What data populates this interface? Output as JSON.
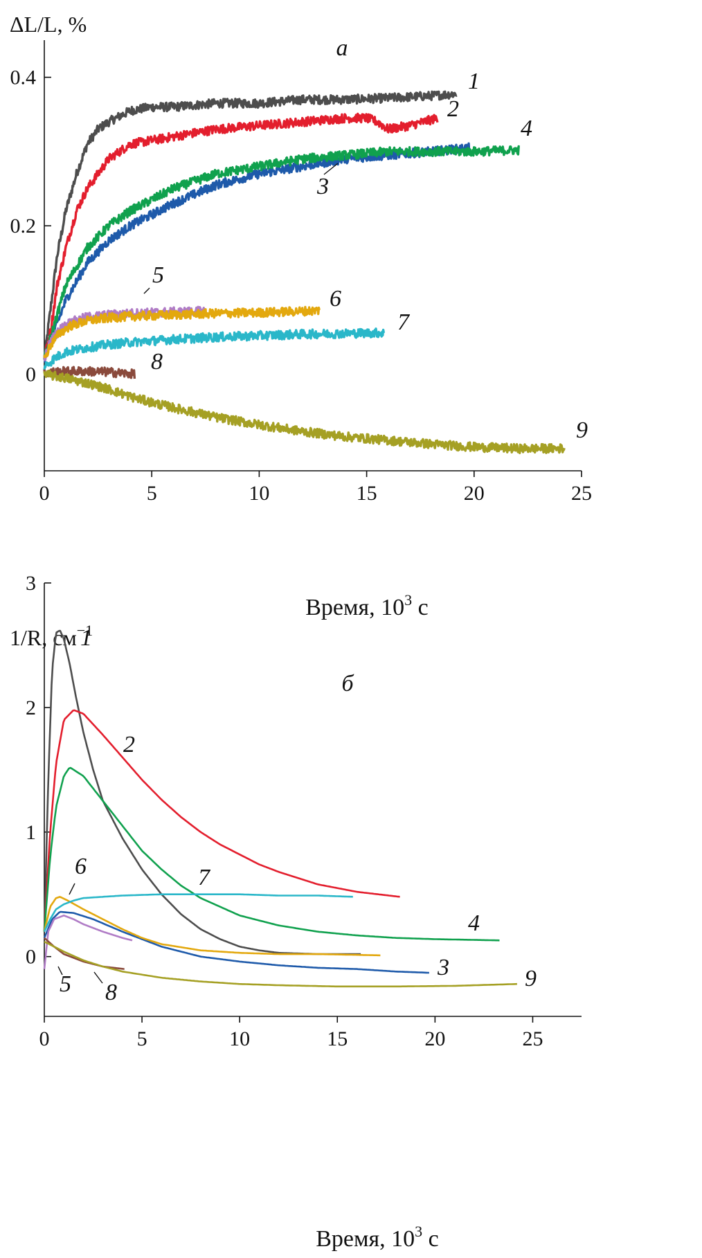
{
  "chart_data": [
    {
      "type": "line",
      "panel_label": "а",
      "ylabel": "ΔL/L, %",
      "xlabel": "Время, 10",
      "xlabel_sup": "3",
      "xlabel_unit": " с",
      "xlim": [
        0,
        25
      ],
      "ylim": [
        -0.13,
        0.45
      ],
      "xticks": [
        0,
        5,
        10,
        15,
        20,
        25
      ],
      "xtick_labels": [
        "0",
        "5",
        "10",
        "15",
        "20",
        "25"
      ],
      "yticks": [
        0,
        0.2,
        0.4
      ],
      "ytick_labels": [
        "0",
        "0.2",
        "0.4"
      ],
      "series": [
        {
          "name": "1",
          "color": "#4d4d4d",
          "x": [
            0,
            0.3,
            0.6,
            1,
            1.5,
            2,
            2.5,
            3,
            4,
            5,
            6,
            8,
            10,
            12,
            14,
            16,
            18,
            19.2
          ],
          "y": [
            0.02,
            0.09,
            0.16,
            0.22,
            0.27,
            0.31,
            0.33,
            0.34,
            0.355,
            0.36,
            0.36,
            0.365,
            0.365,
            0.37,
            0.37,
            0.372,
            0.375,
            0.378
          ]
        },
        {
          "name": "2",
          "color": "#e31e2d",
          "x": [
            0,
            0.3,
            0.6,
            1,
            1.5,
            2,
            3,
            4,
            5,
            6,
            8,
            10,
            12,
            14,
            15,
            15.5,
            16,
            17,
            18.3
          ],
          "y": [
            0.02,
            0.06,
            0.12,
            0.17,
            0.22,
            0.25,
            0.29,
            0.31,
            0.315,
            0.32,
            0.33,
            0.335,
            0.34,
            0.345,
            0.345,
            0.34,
            0.33,
            0.335,
            0.345
          ]
        },
        {
          "name": "3",
          "color": "#1e5aaa",
          "x": [
            0,
            0.5,
            1,
            2,
            3,
            4,
            5,
            6,
            8,
            10,
            12,
            14,
            16,
            18,
            19.8
          ],
          "y": [
            0.02,
            0.06,
            0.1,
            0.15,
            0.18,
            0.2,
            0.215,
            0.23,
            0.255,
            0.27,
            0.28,
            0.29,
            0.295,
            0.3,
            0.305
          ]
        },
        {
          "name": "4",
          "color": "#10a14e",
          "x": [
            0,
            0.5,
            1,
            2,
            3,
            4,
            5,
            6,
            8,
            10,
            12,
            14,
            16,
            18,
            20,
            22.1
          ],
          "y": [
            0.02,
            0.07,
            0.12,
            0.17,
            0.2,
            0.22,
            0.235,
            0.25,
            0.27,
            0.28,
            0.29,
            0.295,
            0.3,
            0.3,
            0.3,
            0.302
          ]
        },
        {
          "name": "5",
          "color": "#b07cc6",
          "x": [
            0,
            0.3,
            0.7,
            1.2,
            2,
            3,
            4,
            5,
            6,
            7.5
          ],
          "y": [
            0.02,
            0.045,
            0.06,
            0.07,
            0.077,
            0.08,
            0.082,
            0.083,
            0.084,
            0.085
          ]
        },
        {
          "name": "6",
          "color": "#e3a80e",
          "x": [
            0,
            0.3,
            0.7,
            1.2,
            2,
            3,
            4,
            6,
            8,
            10,
            12,
            12.8
          ],
          "y": [
            0.02,
            0.04,
            0.055,
            0.065,
            0.072,
            0.076,
            0.078,
            0.08,
            0.082,
            0.083,
            0.085,
            0.086
          ]
        },
        {
          "name": "7",
          "color": "#2ab7c9",
          "x": [
            0,
            0.5,
            1,
            2,
            3,
            4,
            6,
            8,
            10,
            12,
            14,
            15.8
          ],
          "y": [
            0.01,
            0.022,
            0.03,
            0.036,
            0.04,
            0.043,
            0.047,
            0.05,
            0.052,
            0.054,
            0.055,
            0.056
          ]
        },
        {
          "name": "8",
          "color": "#8a4a3c",
          "x": [
            0,
            0.5,
            1,
            2,
            3,
            4.2
          ],
          "y": [
            0.002,
            0.003,
            0.004,
            0.004,
            0.003,
            0.0
          ]
        },
        {
          "name": "9",
          "color": "#a5a024",
          "x": [
            0,
            1,
            2,
            3,
            4,
            5,
            6,
            8,
            10,
            12,
            14,
            16,
            18,
            20,
            22,
            24.2
          ],
          "y": [
            0.0,
            -0.005,
            -0.012,
            -0.02,
            -0.03,
            -0.038,
            -0.045,
            -0.058,
            -0.068,
            -0.077,
            -0.084,
            -0.089,
            -0.094,
            -0.098,
            -0.1,
            -0.1
          ]
        }
      ]
    },
    {
      "type": "line",
      "panel_label": "б",
      "ylabel": "1/R, см",
      "ylabel_sup": "−1",
      "xlabel": "Время, 10",
      "xlabel_sup": "3",
      "xlabel_unit": " с",
      "xlim": [
        0,
        27.5
      ],
      "ylim": [
        -0.48,
        3
      ],
      "xticks": [
        0,
        5,
        10,
        15,
        20,
        25
      ],
      "xtick_labels": [
        "0",
        "5",
        "10",
        "15",
        "20",
        "25"
      ],
      "yticks": [
        0,
        1,
        2,
        3
      ],
      "ytick_labels": [
        "0",
        "1",
        "2",
        "3"
      ],
      "series": [
        {
          "name": "1",
          "color": "#4d4d4d",
          "x": [
            0,
            0.2,
            0.4,
            0.6,
            0.8,
            1,
            1.3,
            1.6,
            2,
            2.5,
            3,
            4,
            5,
            6,
            7,
            8,
            9,
            10,
            11,
            12,
            14,
            16.2
          ],
          "y": [
            0.2,
            1.4,
            2.3,
            2.6,
            2.62,
            2.55,
            2.35,
            2.1,
            1.8,
            1.5,
            1.25,
            0.95,
            0.7,
            0.5,
            0.34,
            0.22,
            0.14,
            0.08,
            0.05,
            0.03,
            0.02,
            0.02
          ]
        },
        {
          "name": "2",
          "color": "#e31e2d",
          "x": [
            0,
            0.3,
            0.6,
            1,
            1.5,
            2,
            3,
            4,
            5,
            6,
            7,
            8,
            9,
            10,
            11,
            12,
            13,
            14,
            16,
            18.2
          ],
          "y": [
            0.2,
            1.0,
            1.55,
            1.9,
            1.98,
            1.95,
            1.78,
            1.6,
            1.42,
            1.26,
            1.12,
            1.0,
            0.9,
            0.82,
            0.74,
            0.68,
            0.63,
            0.58,
            0.52,
            0.48
          ]
        },
        {
          "name": "3",
          "color": "#1e5aaa",
          "x": [
            0,
            0.4,
            0.8,
            1.5,
            2.5,
            4,
            6,
            8,
            10,
            12,
            14,
            16,
            18,
            19.7
          ],
          "y": [
            0.15,
            0.3,
            0.36,
            0.35,
            0.3,
            0.2,
            0.08,
            0.0,
            -0.04,
            -0.07,
            -0.09,
            -0.1,
            -0.12,
            -0.13
          ]
        },
        {
          "name": "4",
          "color": "#10a14e",
          "x": [
            0,
            0.3,
            0.6,
            1,
            1.3,
            2,
            3,
            4,
            5,
            6,
            7,
            8,
            10,
            12,
            14,
            16,
            18,
            20,
            23.3
          ],
          "y": [
            0.2,
            0.8,
            1.2,
            1.45,
            1.52,
            1.45,
            1.25,
            1.05,
            0.85,
            0.7,
            0.57,
            0.47,
            0.33,
            0.25,
            0.2,
            0.17,
            0.15,
            0.14,
            0.13
          ]
        },
        {
          "name": "5",
          "color": "#b07cc6",
          "x": [
            0,
            0.2,
            0.5,
            1,
            1.5,
            2,
            3,
            4,
            4.5
          ],
          "y": [
            -0.1,
            0.2,
            0.3,
            0.33,
            0.3,
            0.26,
            0.2,
            0.15,
            0.13
          ]
        },
        {
          "name": "6",
          "color": "#e3a80e",
          "x": [
            0,
            0.3,
            0.6,
            0.8,
            1.2,
            2,
            3,
            4,
            5,
            6,
            8,
            10,
            12,
            14,
            17.2
          ],
          "y": [
            0.2,
            0.4,
            0.47,
            0.48,
            0.45,
            0.38,
            0.3,
            0.22,
            0.15,
            0.1,
            0.05,
            0.03,
            0.02,
            0.02,
            0.01
          ]
        },
        {
          "name": "7",
          "color": "#2ab7c9",
          "x": [
            0,
            0.3,
            0.6,
            1,
            1.5,
            2,
            3,
            4,
            6,
            8,
            10,
            12,
            14,
            15.8
          ],
          "y": [
            0.2,
            0.3,
            0.38,
            0.42,
            0.45,
            0.47,
            0.48,
            0.49,
            0.5,
            0.5,
            0.5,
            0.49,
            0.49,
            0.48
          ]
        },
        {
          "name": "8",
          "color": "#8a4a3c",
          "x": [
            0,
            0.5,
            1,
            2,
            3,
            4.1
          ],
          "y": [
            0.15,
            0.08,
            0.02,
            -0.04,
            -0.08,
            -0.1
          ]
        },
        {
          "name": "9",
          "color": "#a5a024",
          "x": [
            0,
            0.5,
            1,
            2,
            3,
            4,
            6,
            8,
            10,
            12,
            15,
            18,
            21,
            24.2
          ],
          "y": [
            0.12,
            0.08,
            0.04,
            -0.03,
            -0.08,
            -0.12,
            -0.17,
            -0.2,
            -0.22,
            -0.23,
            -0.24,
            -0.24,
            -0.235,
            -0.22
          ]
        }
      ]
    }
  ]
}
